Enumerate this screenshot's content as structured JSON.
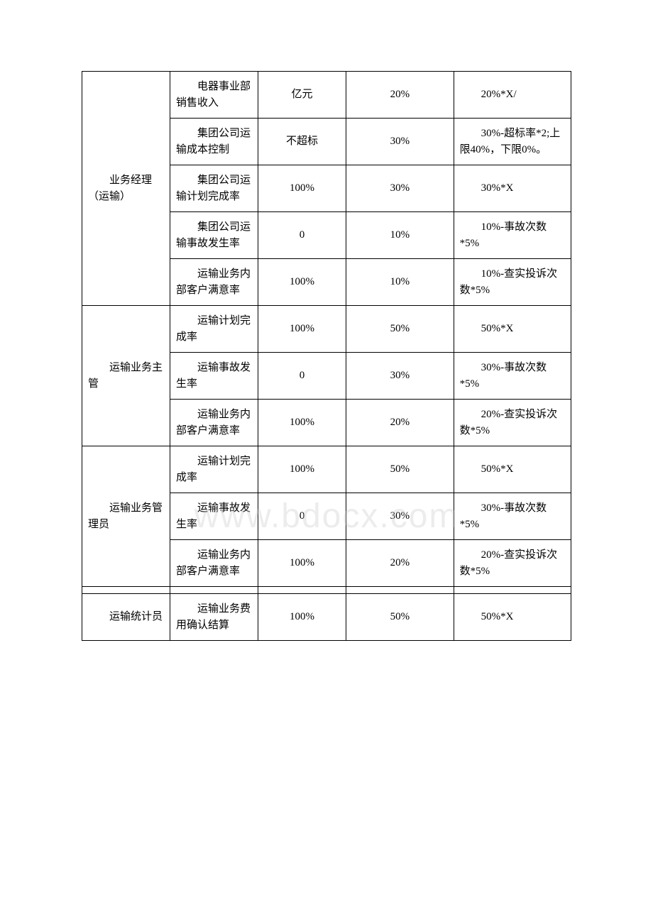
{
  "watermark": "www.bdocx.com",
  "table": {
    "border_color": "#000000",
    "background_color": "#ffffff",
    "text_color": "#000000",
    "font_size": 15,
    "columns_width_pct": [
      18,
      18,
      18,
      22,
      24
    ],
    "groups": [
      {
        "role": "业务经理（运输）",
        "rows": [
          {
            "metric": "电器事业部销售收入",
            "target": "亿元",
            "weight": "20%",
            "calc": "20%*X/"
          },
          {
            "metric": "集团公司运输成本控制",
            "target": "不超标",
            "weight": "30%",
            "calc": "30%-超标率*2;上限40%，下限0%。"
          },
          {
            "metric": "集团公司运输计划完成率",
            "target": "100%",
            "weight": "30%",
            "calc": "30%*X"
          },
          {
            "metric": "集团公司运输事故发生率",
            "target": "0",
            "weight": "10%",
            "calc": "10%-事故次数*5%"
          },
          {
            "metric": "运输业务内部客户满意率",
            "target": "100%",
            "weight": "10%",
            "calc": "10%-查实投诉次数*5%"
          }
        ]
      },
      {
        "role": "运输业务主管",
        "rows": [
          {
            "metric": "运输计划完成率",
            "target": "100%",
            "weight": "50%",
            "calc": "50%*X"
          },
          {
            "metric": "运输事故发生率",
            "target": "0",
            "weight": "30%",
            "calc": "30%-事故次数*5%"
          },
          {
            "metric": "运输业务内部客户满意率",
            "target": "100%",
            "weight": "20%",
            "calc": "20%-查实投诉次数*5%"
          }
        ]
      },
      {
        "role": "运输业务管理员",
        "rows": [
          {
            "metric": "运输计划完成率",
            "target": "100%",
            "weight": "50%",
            "calc": "50%*X"
          },
          {
            "metric": "运输事故发生率",
            "target": "0",
            "weight": "30%",
            "calc": "30%-事故次数*5%"
          },
          {
            "metric": "运输业务内部客户满意率",
            "target": "100%",
            "weight": "20%",
            "calc": "20%-查实投诉次数*5%"
          }
        ]
      },
      {
        "spacer": true
      },
      {
        "role": "运输统计员",
        "rows": [
          {
            "metric": "运输业务费用确认结算",
            "target": "100%",
            "weight": "50%",
            "calc": "50%*X"
          }
        ]
      }
    ]
  }
}
